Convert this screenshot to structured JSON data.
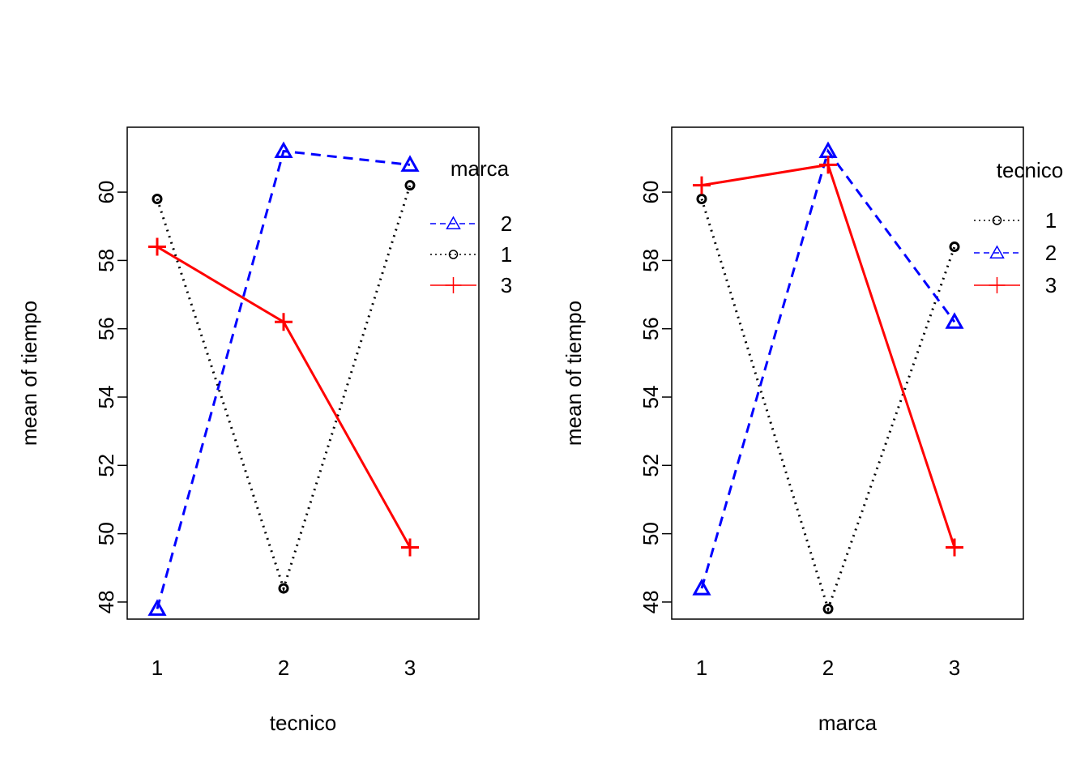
{
  "chart_data": [
    {
      "type": "line",
      "title": "",
      "xlabel": "tecnico",
      "ylabel": "mean of  tiempo",
      "categories": [
        "1",
        "2",
        "3"
      ],
      "ylim": [
        47.5,
        61.9
      ],
      "yticks": [
        48,
        50,
        52,
        54,
        56,
        58,
        60
      ],
      "grid": false,
      "legend": {
        "title": "marca",
        "position": "top-right"
      },
      "series": [
        {
          "name": "2",
          "values": [
            47.8,
            61.2,
            60.8
          ],
          "color": "#0000FF",
          "dash": "dashed",
          "marker": "triangle"
        },
        {
          "name": "1",
          "values": [
            59.8,
            48.4,
            60.2
          ],
          "color": "#000000",
          "dash": "dotted",
          "marker": "circle"
        },
        {
          "name": "3",
          "values": [
            58.4,
            56.2,
            49.6
          ],
          "color": "#FF0000",
          "dash": "solid",
          "marker": "plus"
        }
      ]
    },
    {
      "type": "line",
      "title": "",
      "xlabel": "marca",
      "ylabel": "mean of  tiempo",
      "categories": [
        "1",
        "2",
        "3"
      ],
      "ylim": [
        47.5,
        61.9
      ],
      "yticks": [
        48,
        50,
        52,
        54,
        56,
        58,
        60
      ],
      "grid": false,
      "legend": {
        "title": "tecnico",
        "position": "top-right"
      },
      "series": [
        {
          "name": "1",
          "values": [
            59.8,
            47.8,
            58.4
          ],
          "color": "#000000",
          "dash": "dotted",
          "marker": "circle"
        },
        {
          "name": "2",
          "values": [
            48.4,
            61.2,
            56.2
          ],
          "color": "#0000FF",
          "dash": "dashed",
          "marker": "triangle"
        },
        {
          "name": "3",
          "values": [
            60.2,
            60.8,
            49.6
          ],
          "color": "#FF0000",
          "dash": "solid",
          "marker": "plus"
        }
      ]
    }
  ]
}
